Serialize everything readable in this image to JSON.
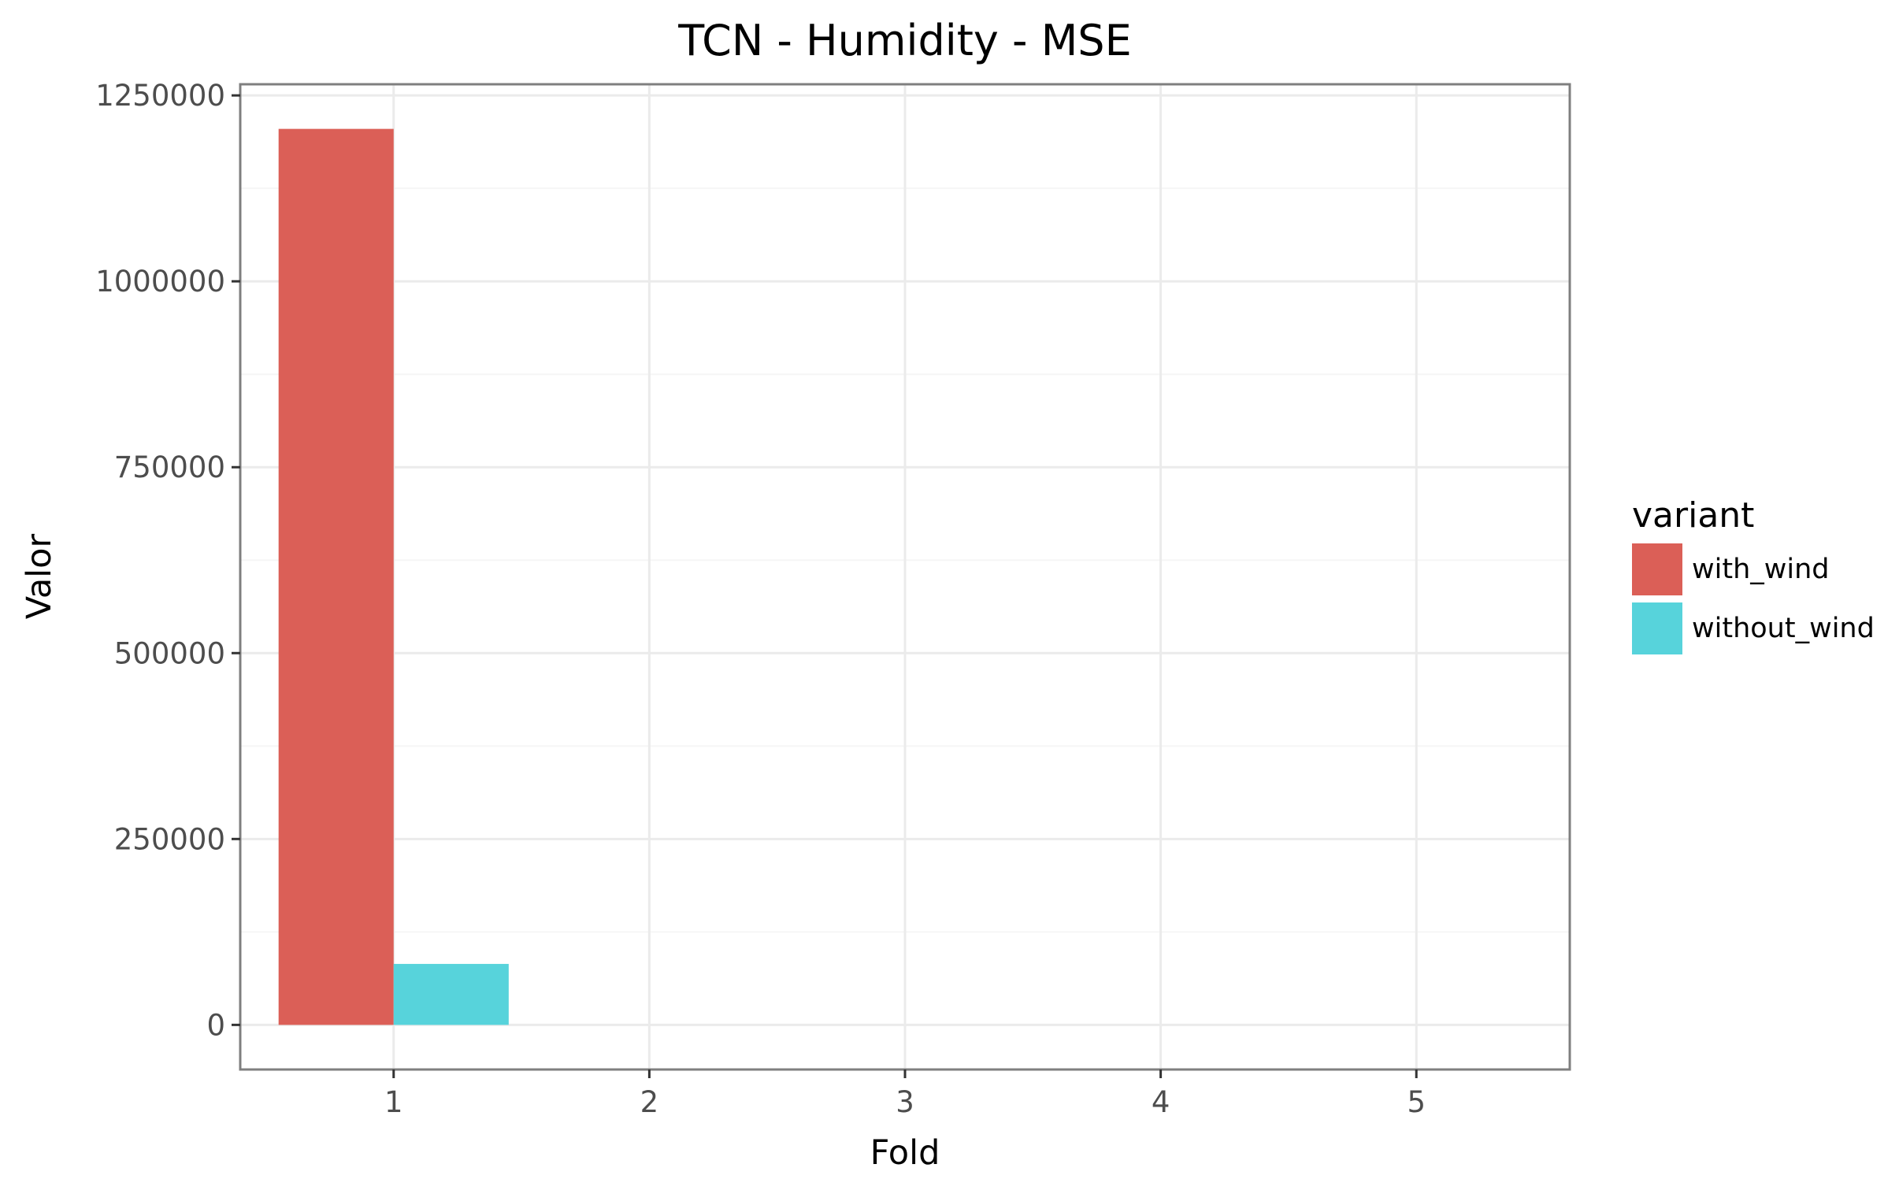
{
  "chart_data": {
    "type": "bar",
    "title": "TCN - Humidity - MSE",
    "xlabel": "Fold",
    "ylabel": "Valor",
    "categories": [
      "1",
      "2",
      "3",
      "4",
      "5"
    ],
    "series": [
      {
        "name": "with_wind",
        "color": "#db5f57",
        "values": [
          1205000,
          null,
          null,
          null,
          null
        ]
      },
      {
        "name": "without_wind",
        "color": "#57d3db",
        "values": [
          82000,
          null,
          null,
          null,
          null
        ]
      }
    ],
    "y_ticks": [
      0,
      250000,
      500000,
      750000,
      1000000,
      1250000
    ],
    "y_tick_labels": [
      "0",
      "250000",
      "500000",
      "750000",
      "1000000",
      "1250000"
    ],
    "ylim": [
      -60000,
      1265000
    ],
    "xlim": [
      0.4,
      5.6
    ],
    "grid": true,
    "legend": {
      "title": "variant",
      "placement": "right"
    },
    "colors": {
      "grid": "#ebebeb",
      "border": "#7f7f7f",
      "background": "#ffffff"
    }
  }
}
